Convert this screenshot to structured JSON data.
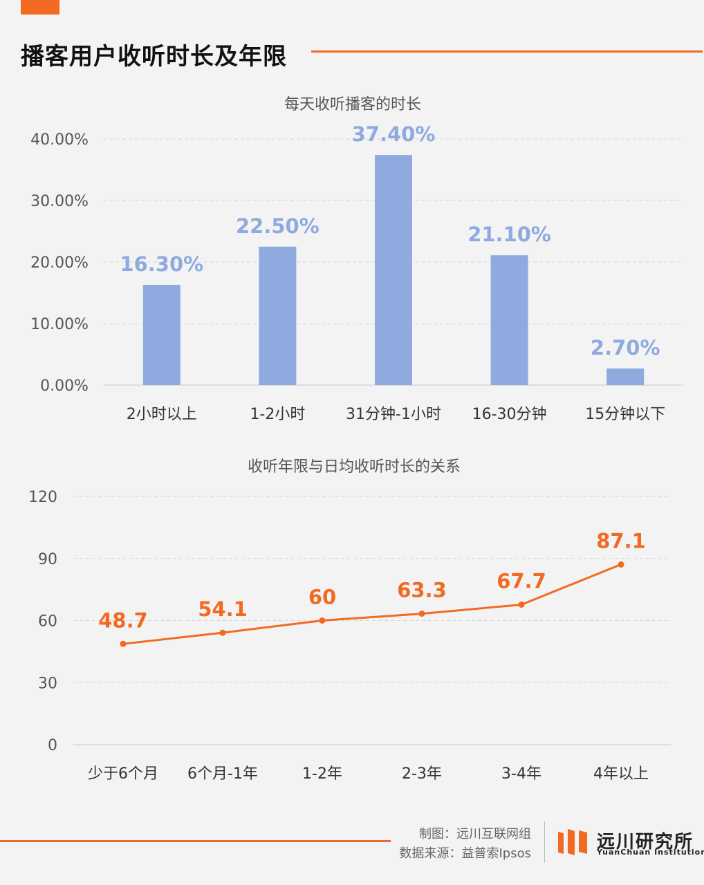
{
  "header": {
    "title": "播客用户收听时长及年限"
  },
  "colors": {
    "accent": "#f26a22",
    "bar": "#8eaadf",
    "line": "#f26a22",
    "grid": "#d6d6d6",
    "axis_text": "#555555"
  },
  "chart_data": [
    {
      "type": "bar",
      "title": "每天收听播客的时长",
      "categories": [
        "2小时以上",
        "1-2小时",
        "31分钟-1小时",
        "16-30分钟",
        "15分钟以下"
      ],
      "values": [
        16.3,
        22.5,
        37.4,
        21.1,
        2.7
      ],
      "data_labels": [
        "16.30%",
        "22.50%",
        "37.40%",
        "21.10%",
        "2.70%"
      ],
      "ylim": [
        0,
        40
      ],
      "yticks": [
        0,
        10,
        20,
        30,
        40
      ],
      "ytick_labels": [
        "0.00%",
        "10.00%",
        "20.00%",
        "30.00%",
        "40.00%"
      ],
      "grid": true,
      "legend": "none"
    },
    {
      "type": "line",
      "title": "收听年限与日均收听时长的关系",
      "categories": [
        "少于6个月",
        "6个月-1年",
        "1-2年",
        "2-3年",
        "3-4年",
        "4年以上"
      ],
      "values": [
        48.7,
        54.1,
        60,
        63.3,
        67.7,
        87.1
      ],
      "data_labels": [
        "48.7",
        "54.1",
        "60",
        "63.3",
        "67.7",
        "87.1"
      ],
      "ylim": [
        0,
        120
      ],
      "yticks": [
        0,
        30,
        60,
        90,
        120
      ],
      "ytick_labels": [
        "0",
        "30",
        "60",
        "90",
        "120"
      ],
      "grid": true,
      "legend": "none"
    }
  ],
  "footer": {
    "credit_line1": "制图：远川互联网组",
    "credit_line2": "数据来源：益普索Ipsos",
    "logo_cn": "远川研究所",
    "logo_en": "YuanChuan Institution"
  }
}
